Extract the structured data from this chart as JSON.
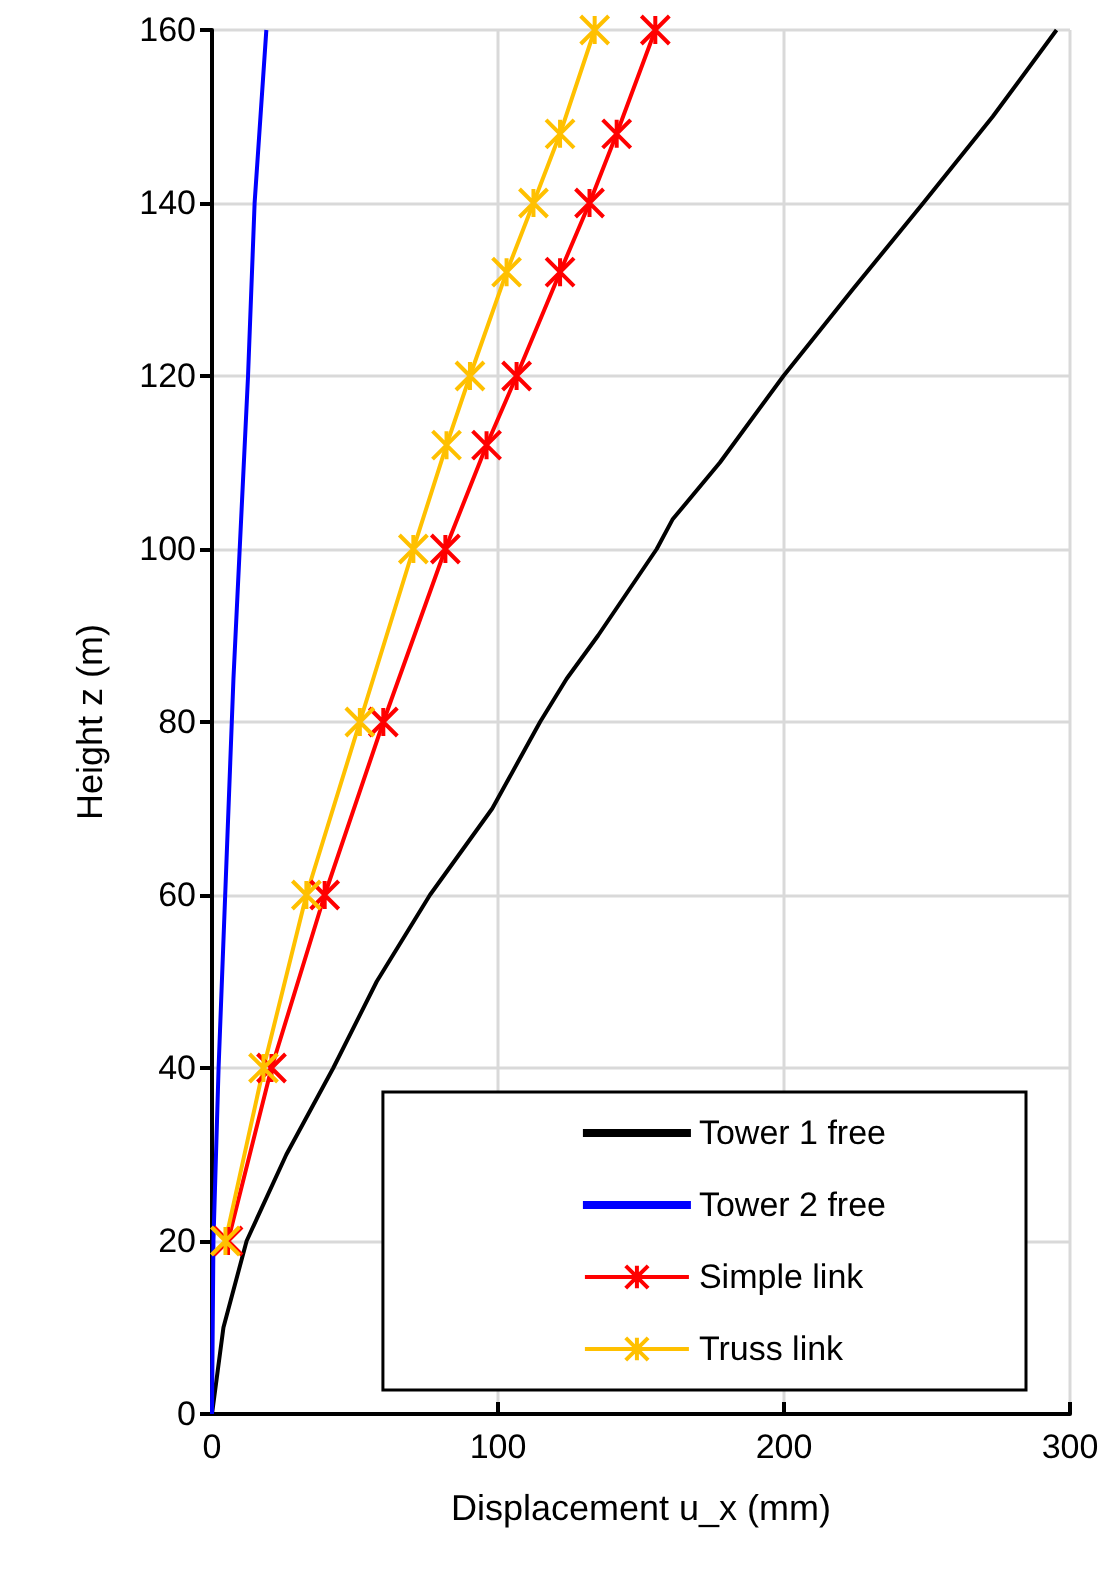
{
  "chart_data": {
    "type": "line",
    "xlabel": "Displacement u_x (mm)",
    "ylabel": "Height z (m)",
    "xlim": [
      0,
      300
    ],
    "xticks": [
      0,
      100,
      200,
      300
    ],
    "ylim": [
      0,
      160
    ],
    "yticks": [
      0,
      20,
      40,
      60,
      80,
      100,
      120,
      140,
      160
    ],
    "grid": true,
    "legend": "bottom right",
    "series": [
      {
        "name": "Tower 1 free",
        "color": "#000000",
        "marker": "none",
        "x": [
          0,
          2,
          4,
          12.1,
          26,
          42.4,
          57.6,
          76.2,
          98,
          114.7,
          124,
          135,
          155.5,
          161,
          177.6,
          199.8,
          224,
          248.7,
          273,
          295.3
        ],
        "values": [
          0,
          5,
          10,
          20,
          30,
          40,
          50,
          60,
          70,
          80,
          85,
          90,
          100,
          103.4,
          110,
          120,
          130,
          140,
          150,
          160
        ]
      },
      {
        "name": "Tower 2 free",
        "color": "#0000ff",
        "marker": "none",
        "x": [
          0,
          0.5,
          2.3,
          7.5,
          12.6,
          14.9,
          19
        ],
        "values": [
          0,
          20,
          40,
          85,
          120,
          140,
          160
        ]
      },
      {
        "name": "Simple link",
        "color": "#ff0000",
        "marker": "cross",
        "x": [
          5.6,
          20.8,
          39.4,
          59.9,
          81.6,
          96,
          106.5,
          121.7,
          132,
          141.5,
          155
        ],
        "values": [
          20,
          40,
          60,
          80,
          100,
          112,
          120,
          132,
          140,
          148,
          160
        ]
      },
      {
        "name": "Truss link",
        "color": "#ffc000",
        "marker": "cross",
        "x": [
          4.7,
          18,
          33,
          51.7,
          70.4,
          82,
          90.2,
          103,
          112.4,
          121.7,
          133.8
        ],
        "values": [
          20,
          40,
          60,
          80,
          100,
          112,
          120,
          132,
          140,
          148,
          160
        ]
      }
    ]
  }
}
